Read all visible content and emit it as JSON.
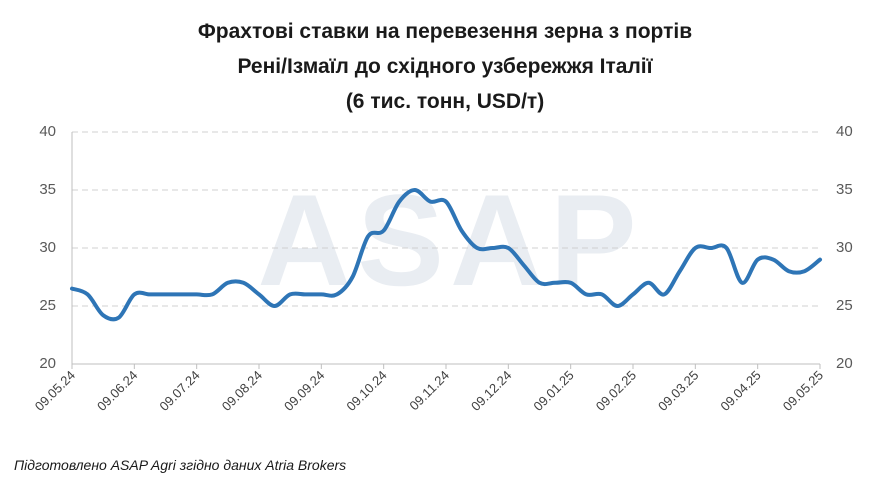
{
  "chart_data": {
    "type": "line",
    "title": [
      "Фрахтові ставки на перевезення зерна з портів",
      "Рені/Ізмаїл до східного узбережжя Італії",
      "(6 тис. тонн, USD/т)"
    ],
    "watermark": "ASAP",
    "source": "Підготовлено ASAP Agri згідно даних Atria Brokers",
    "categories": [
      "09.05.24",
      null,
      null,
      null,
      "09.06.24",
      null,
      null,
      null,
      "09.07.24",
      null,
      null,
      null,
      "09.08.24",
      null,
      null,
      null,
      "09.09.24",
      null,
      null,
      null,
      "09.10.24",
      null,
      null,
      null,
      "09.11.24",
      null,
      null,
      null,
      "09.12.24",
      null,
      null,
      null,
      "09.01.25",
      null,
      null,
      null,
      "09.02.25",
      null,
      null,
      null,
      "09.03.25",
      null,
      null,
      null,
      "09.04.25",
      null,
      null,
      null,
      "09.05.25"
    ],
    "series": [
      {
        "color": "#2e75b6",
        "values": [
          26.5,
          26,
          24.2,
          24,
          26,
          26,
          26,
          26,
          26,
          26,
          27,
          27,
          26,
          25,
          26,
          26,
          26,
          26,
          27.5,
          31,
          31.5,
          34,
          35,
          34,
          34,
          31.5,
          30,
          30,
          30,
          28.5,
          27,
          27,
          27,
          26,
          26,
          25,
          26,
          27,
          26,
          28,
          30,
          30,
          30,
          27,
          29,
          29,
          28,
          28,
          29
        ]
      }
    ],
    "ylim": [
      20,
      40
    ],
    "yticks": [
      20,
      25,
      30,
      35,
      40
    ],
    "y2lim": [
      20,
      40
    ],
    "y2ticks": [
      20,
      25,
      30,
      35,
      40
    ],
    "grid": true
  }
}
